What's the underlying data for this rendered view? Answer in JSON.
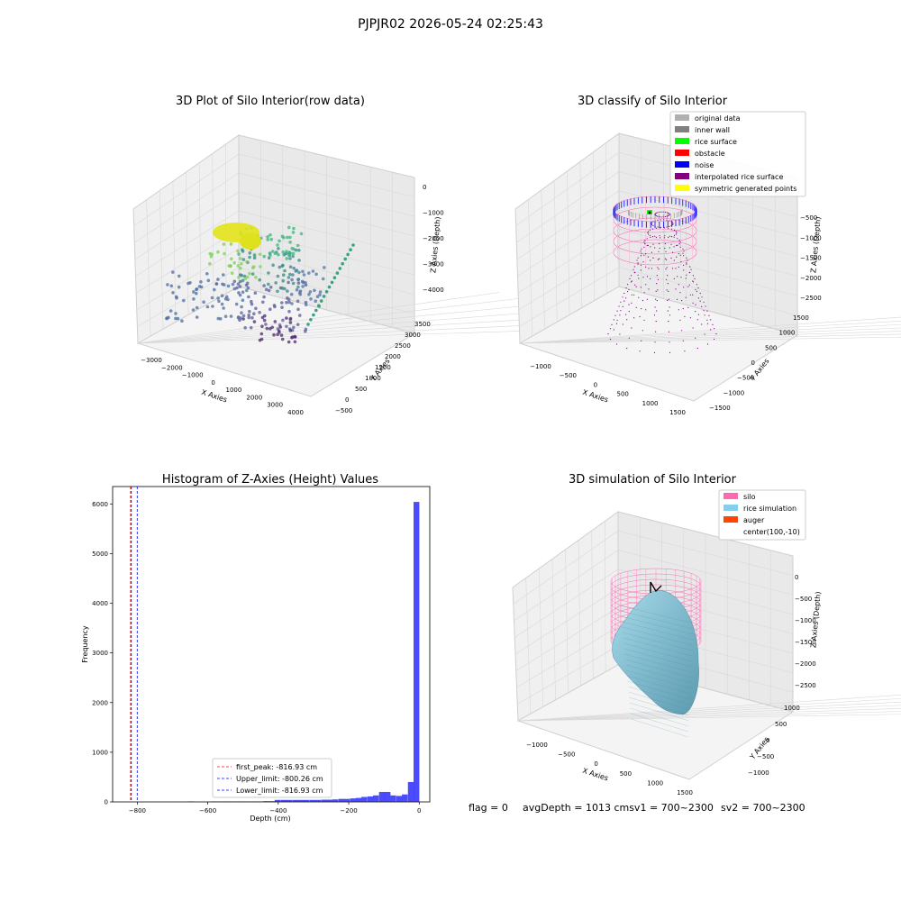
{
  "suptitle": "PJPJR02 2026-05-24 02:25:43",
  "panels": {
    "raw": {
      "title": "3D Plot of Silo Interior(row data)",
      "xlabel": "X Axies",
      "ylabel": "Y Axies",
      "zlabel": "Z Axies (Depth)",
      "xticks": [
        "−3000",
        "−2000",
        "−1000",
        "0",
        "1000",
        "2000",
        "3000",
        "4000"
      ],
      "yticks": [
        "−500",
        "0",
        "500",
        "1000",
        "1500",
        "2000",
        "2500",
        "3000",
        "3500"
      ],
      "zticks": [
        "0",
        "−1000",
        "−2000",
        "−3000",
        "−4000"
      ]
    },
    "classify": {
      "title": "3D classify of Silo Interior",
      "xlabel": "X Axies",
      "ylabel": "Y Axies",
      "zlabel": "Z Axies (Depth)",
      "xticks": [
        "−1000",
        "−500",
        "0",
        "500",
        "1000",
        "1500"
      ],
      "yticks": [
        "−1500",
        "−1000",
        "−500",
        "0",
        "500",
        "1000",
        "1500"
      ],
      "zticks": [
        "−500",
        "−1000",
        "−1500",
        "−2000",
        "−2500"
      ],
      "legend": [
        {
          "label": "original data",
          "color": "#b0b0b0"
        },
        {
          "label": "inner wall",
          "color": "#808080"
        },
        {
          "label": "rice surface",
          "color": "#00ff00"
        },
        {
          "label": "obstacle",
          "color": "#ff0000"
        },
        {
          "label": "noise",
          "color": "#0000ff"
        },
        {
          "label": "interpolated rice surface",
          "color": "#800080"
        },
        {
          "label": "symmetric generated points",
          "color": "#ffff00"
        }
      ]
    },
    "simulation": {
      "title": "3D simulation of Silo Interior",
      "xlabel": "X Axies",
      "ylabel": "Y Axies",
      "zlabel": "Z Axies (Depth)",
      "xticks": [
        "−1000",
        "−500",
        "0",
        "500",
        "1000",
        "1500"
      ],
      "yticks": [
        "−1000",
        "−500",
        "0",
        "500",
        "1000"
      ],
      "zticks": [
        "0",
        "−500",
        "−1000",
        "−1500",
        "−2000",
        "−2500"
      ],
      "legend": [
        {
          "label": "silo",
          "color": "#ff69b4"
        },
        {
          "label": "rice simulation",
          "color": "#87ceeb"
        },
        {
          "label": "auger",
          "color": "#ff4500"
        },
        {
          "label": "center(100,-10)",
          "color": "none"
        }
      ]
    }
  },
  "footer": {
    "flag": "flag = 0",
    "avg": "avgDepth = 1013 cmsv1 = 700~2300",
    "sv2": "sv2 = 700~2300"
  },
  "colors": {
    "hist_bar": "#0000ff",
    "peak_line": "#ff0000",
    "limit_line": "#0000ff"
  },
  "chart_data": [
    {
      "type": "bar",
      "title": "Histogram of Z-Axies (Height) Values",
      "xlabel": "Depth (cm)",
      "ylabel": "Frequency",
      "xlim": [
        -870,
        30
      ],
      "ylim": [
        0,
        6350
      ],
      "xticks": [
        "−800",
        "−600",
        "−400",
        "−200",
        "0"
      ],
      "yticks": [
        "0",
        "1000",
        "2000",
        "3000",
        "4000",
        "5000",
        "6000"
      ],
      "xtick_values": [
        -800,
        -600,
        -400,
        -200,
        0
      ],
      "ytick_values": [
        0,
        1000,
        2000,
        3000,
        4000,
        5000,
        6000
      ],
      "bin_width": 16.4,
      "bins": [
        {
          "x0": -820,
          "count": 0
        },
        {
          "x0": -803,
          "count": 0
        },
        {
          "x0": -787,
          "count": 0
        },
        {
          "x0": -770,
          "count": 0
        },
        {
          "x0": -754,
          "count": 0
        },
        {
          "x0": -738,
          "count": 0
        },
        {
          "x0": -721,
          "count": 0
        },
        {
          "x0": -705,
          "count": 0
        },
        {
          "x0": -688,
          "count": 0
        },
        {
          "x0": -672,
          "count": 0
        },
        {
          "x0": -656,
          "count": 10
        },
        {
          "x0": -639,
          "count": 0
        },
        {
          "x0": -623,
          "count": 0
        },
        {
          "x0": -606,
          "count": 0
        },
        {
          "x0": -590,
          "count": 10
        },
        {
          "x0": -574,
          "count": 10
        },
        {
          "x0": -557,
          "count": 10
        },
        {
          "x0": -541,
          "count": 10
        },
        {
          "x0": -524,
          "count": 10
        },
        {
          "x0": -508,
          "count": 10
        },
        {
          "x0": -492,
          "count": 10
        },
        {
          "x0": -475,
          "count": 10
        },
        {
          "x0": -459,
          "count": 10
        },
        {
          "x0": -442,
          "count": 15
        },
        {
          "x0": -426,
          "count": 15
        },
        {
          "x0": -410,
          "count": 40
        },
        {
          "x0": -393,
          "count": 40
        },
        {
          "x0": -377,
          "count": 40
        },
        {
          "x0": -360,
          "count": 40
        },
        {
          "x0": -344,
          "count": 40
        },
        {
          "x0": -328,
          "count": 40
        },
        {
          "x0": -311,
          "count": 40
        },
        {
          "x0": -295,
          "count": 40
        },
        {
          "x0": -278,
          "count": 45
        },
        {
          "x0": -262,
          "count": 45
        },
        {
          "x0": -246,
          "count": 50
        },
        {
          "x0": -229,
          "count": 60
        },
        {
          "x0": -213,
          "count": 60
        },
        {
          "x0": -196,
          "count": 70
        },
        {
          "x0": -180,
          "count": 80
        },
        {
          "x0": -164,
          "count": 100
        },
        {
          "x0": -147,
          "count": 110
        },
        {
          "x0": -131,
          "count": 130
        },
        {
          "x0": -114,
          "count": 200
        },
        {
          "x0": -98,
          "count": 200
        },
        {
          "x0": -82,
          "count": 130
        },
        {
          "x0": -65,
          "count": 120
        },
        {
          "x0": -49,
          "count": 150
        },
        {
          "x0": -32,
          "count": 400
        },
        {
          "x0": -16,
          "count": 6040
        }
      ],
      "lines": [
        {
          "label": "first_peak: -816.93 cm",
          "x": -816.93,
          "color": "#ff0000"
        },
        {
          "label": "Upper_limit: -800.26 cm",
          "x": -800.26,
          "color": "#0000ff"
        },
        {
          "label": "Lower_limit: -816.93 cm",
          "x": -816.93,
          "color": "#0000ff"
        }
      ],
      "legend_position": "lower-center"
    }
  ]
}
